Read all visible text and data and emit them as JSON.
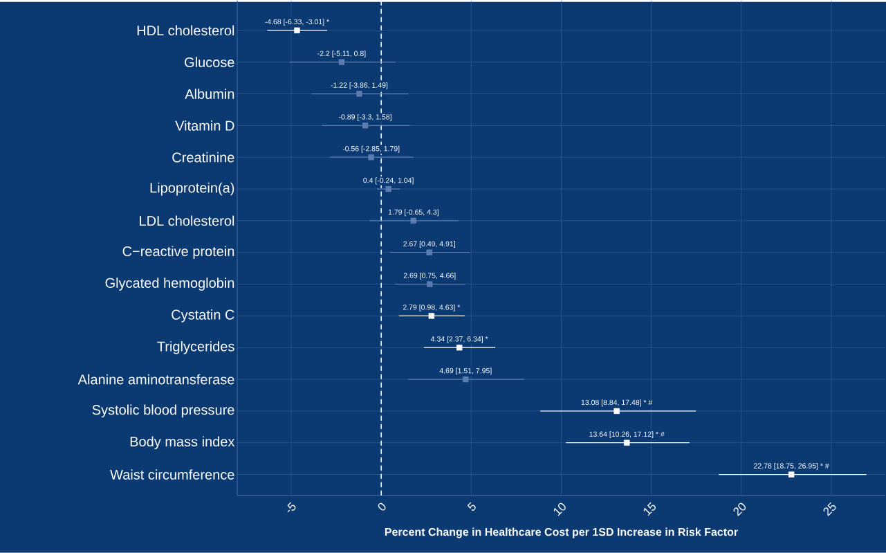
{
  "chart_data": {
    "type": "scatter",
    "orientation": "horizontal",
    "xlabel": "Percent Change in Healthcare Cost per 1SD Increase in Risk Factor",
    "categories": [
      "HDL cholesterol",
      "Glucose",
      "Albumin",
      "Vitamin D",
      "Creatinine",
      "Lipoprotein(a)",
      "LDL cholesterol",
      "C−reactive protein",
      "Glycated hemoglobin",
      "Cystatin C",
      "Triglycerides",
      "Alanine aminotransferase",
      "Systolic blood pressure",
      "Body mass index",
      "Waist circumference"
    ],
    "values": [
      -4.68,
      -2.2,
      -1.22,
      -0.89,
      -0.56,
      0.4,
      1.79,
      2.67,
      2.69,
      2.79,
      4.34,
      4.69,
      13.08,
      13.64,
      22.78
    ],
    "errors": [
      [
        -6.33,
        -3.01
      ],
      [
        -5.11,
        0.8
      ],
      [
        -3.86,
        1.49
      ],
      [
        -3.3,
        1.58
      ],
      [
        -2.85,
        1.79
      ],
      [
        -0.24,
        1.04
      ],
      [
        -0.65,
        4.3
      ],
      [
        0.49,
        4.91
      ],
      [
        0.75,
        4.66
      ],
      [
        0.98,
        4.63
      ],
      [
        2.37,
        6.34
      ],
      [
        1.51,
        7.95
      ],
      [
        8.84,
        17.48
      ],
      [
        10.26,
        17.12
      ],
      [
        18.75,
        26.95
      ]
    ],
    "value_labels": [
      "-4.68 [-6.33, -3.01] *",
      "-2.2 [-5.11, 0.8]",
      "-1.22 [-3.86, 1.49]",
      "-0.89 [-3.3, 1.58]",
      "-0.56 [-2.85, 1.79]",
      "0.4 [-0.24, 1.04]",
      "1.79 [-0.65, 4.3]",
      "2.67 [0.49, 4.91]",
      "2.69 [0.75, 4.66]",
      "2.79 [0.98, 4.63] *",
      "4.34 [2.37, 6.34] *",
      "4.69 [1.51, 7.95]",
      "13.08 [8.84, 17.48] * #",
      "13.64 [10.26, 17.12] * #",
      "22.78 [18.75, 26.95] * #"
    ],
    "colors": [
      "#ffffff",
      "#5b7db0",
      "#5b7db0",
      "#5b7db0",
      "#5b7db0",
      "#5b7db0",
      "#5b7db0",
      "#5b7db0",
      "#5b7db0",
      "#ffffff",
      "#ffffff",
      "#5b7db0",
      "#ffffff",
      "#ffffff",
      "#ffffff"
    ],
    "xlim": [
      -8,
      28
    ],
    "xticks": [
      -5,
      0,
      5,
      10,
      15,
      20,
      25
    ],
    "ref_lines": [
      {
        "axis": "x",
        "value": 0,
        "line_style": "dashed",
        "color": "#ffffff"
      }
    ],
    "grid": true,
    "marker": "square"
  }
}
